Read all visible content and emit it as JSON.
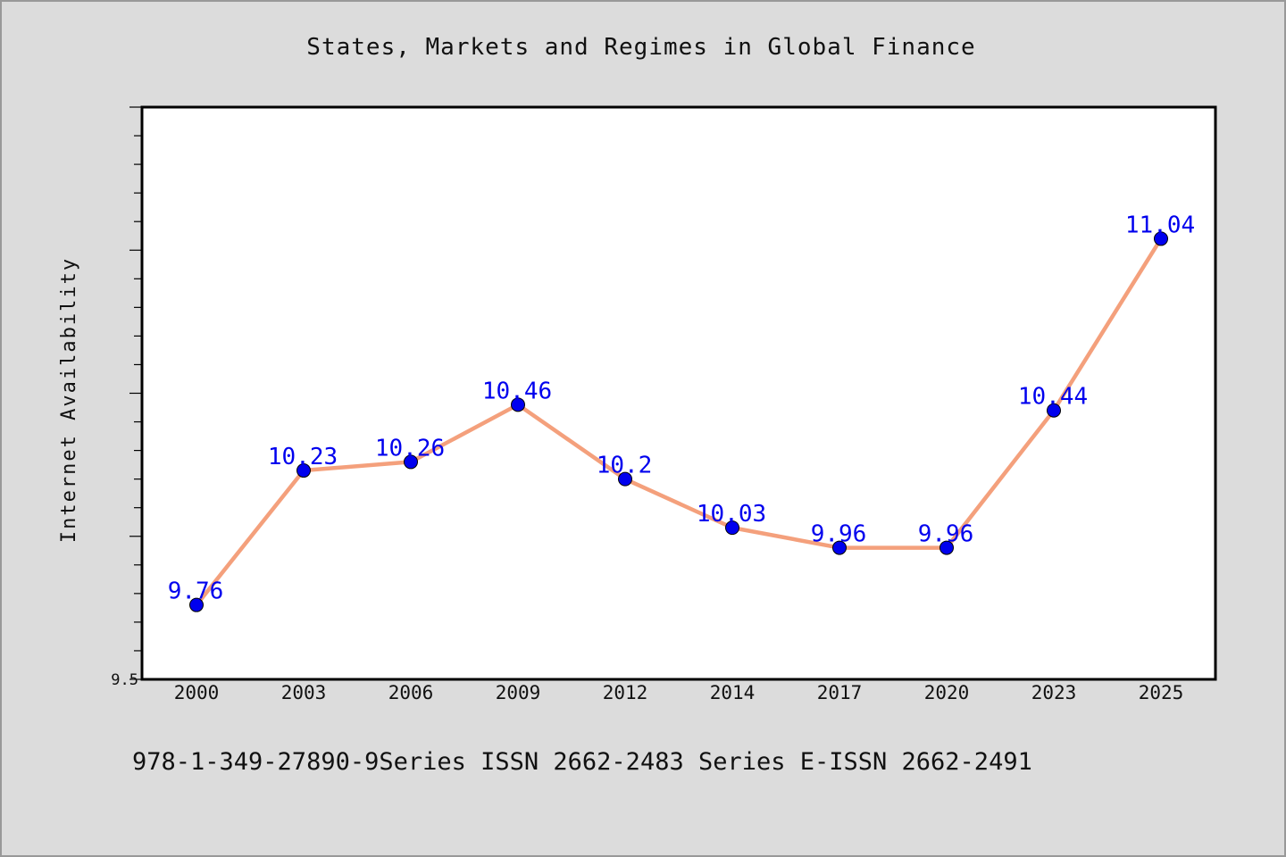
{
  "chart_data": {
    "type": "line",
    "title": "States, Markets and Regimes in Global Finance",
    "xlabel": "",
    "ylabel": "Internet Availability",
    "categories": [
      "2000",
      "2003",
      "2006",
      "2009",
      "2012",
      "2014",
      "2017",
      "2020",
      "2023",
      "2025"
    ],
    "values": [
      9.76,
      10.23,
      10.26,
      10.46,
      10.2,
      10.03,
      9.96,
      9.96,
      10.44,
      11.04
    ],
    "data_labels": [
      "9.76",
      "10.23",
      "10.26",
      "10.46",
      "10.2",
      "10.03",
      "9.96",
      "9.96",
      "10.44",
      "11.04"
    ],
    "ylim": [
      9.5,
      11.5
    ],
    "yticks_labeled": [
      "9.5"
    ],
    "grid": false,
    "line_color": "#f4a07c",
    "marker_color": "#0000ee",
    "label_color": "#0000ee",
    "plot_background": "#ffffff",
    "page_background": "#dcdcdc"
  },
  "footer": "978-1-349-27890-9Series ISSN 2662-2483 Series E-ISSN 2662-2491"
}
